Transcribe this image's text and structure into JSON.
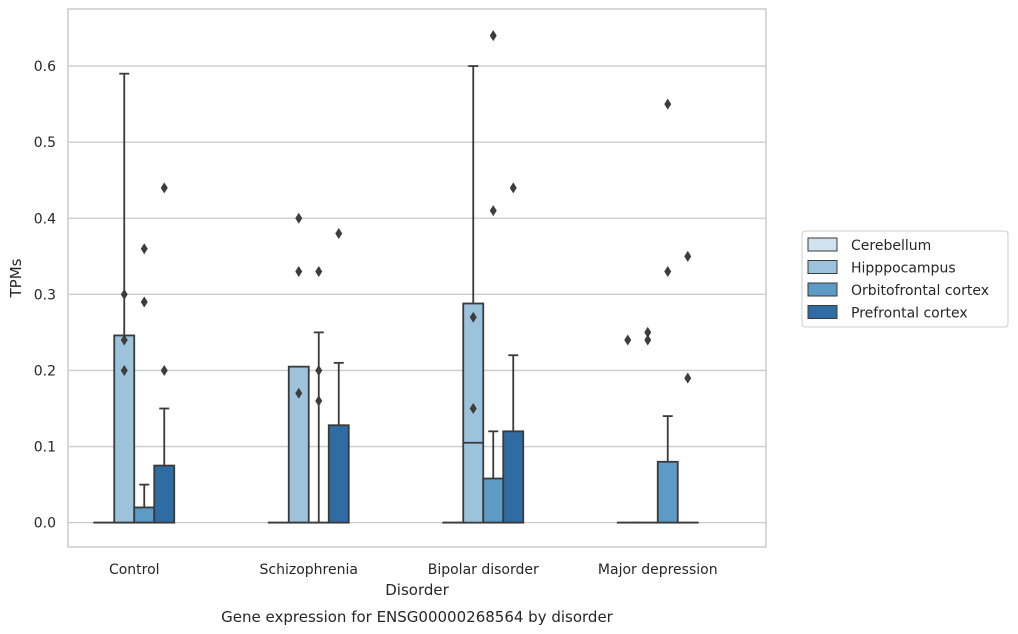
{
  "chart_data": {
    "type": "box",
    "title": "Gene expression for ENSG00000268564 by disorder",
    "xlabel": "Disorder",
    "ylabel": "TPMs",
    "ylim": [
      -0.032,
      0.675
    ],
    "yticks": [
      0.0,
      0.1,
      0.2,
      0.3,
      0.4,
      0.5,
      0.6
    ],
    "ytick_labels": [
      "0.0",
      "0.1",
      "0.2",
      "0.3",
      "0.4",
      "0.5",
      "0.6"
    ],
    "grid": true,
    "legend_position": "right",
    "categories": [
      "Control",
      "Schizophrenia",
      "Bipolar disorder",
      "Major depression"
    ],
    "series": [
      {
        "name": "Cerebellum",
        "color": "#d1e1ee",
        "boxes": [
          {
            "q1": 0,
            "median": 0,
            "q3": 0,
            "whisker_low": 0,
            "whisker_high": 0,
            "outliers": []
          },
          {
            "q1": 0,
            "median": 0,
            "q3": 0,
            "whisker_low": 0,
            "whisker_high": 0,
            "outliers": []
          },
          {
            "q1": 0,
            "median": 0,
            "q3": 0,
            "whisker_low": 0,
            "whisker_high": 0,
            "outliers": []
          },
          {
            "q1": 0,
            "median": 0,
            "q3": 0,
            "whisker_low": 0,
            "whisker_high": 0,
            "outliers": [
              0.24
            ]
          }
        ]
      },
      {
        "name": "Hipppocampus",
        "color": "#9cc2dc",
        "boxes": [
          {
            "q1": 0,
            "median": 0,
            "q3": 0.246,
            "whisker_low": 0,
            "whisker_high": 0.59,
            "outliers": [
              0.2,
              0.24,
              0.3
            ]
          },
          {
            "q1": 0,
            "median": 0,
            "q3": 0.205,
            "whisker_low": 0,
            "whisker_high": 0.205,
            "outliers": [
              0.17,
              0.33,
              0.4
            ]
          },
          {
            "q1": 0,
            "median": 0.105,
            "q3": 0.288,
            "whisker_low": 0,
            "whisker_high": 0.6,
            "outliers": [
              0.15,
              0.27
            ]
          },
          {
            "q1": 0,
            "median": 0,
            "q3": 0,
            "whisker_low": 0,
            "whisker_high": 0,
            "outliers": [
              0.24,
              0.25
            ]
          }
        ]
      },
      {
        "name": "Orbitofrontal cortex",
        "color": "#5c9bc6",
        "boxes": [
          {
            "q1": 0,
            "median": 0,
            "q3": 0.02,
            "whisker_low": 0,
            "whisker_high": 0.05,
            "outliers": [
              0.29,
              0.36
            ]
          },
          {
            "q1": 0,
            "median": 0,
            "q3": 0,
            "whisker_low": 0,
            "whisker_high": 0.25,
            "outliers": [
              0.16,
              0.2,
              0.33
            ]
          },
          {
            "q1": 0,
            "median": 0,
            "q3": 0.058,
            "whisker_low": 0,
            "whisker_high": 0.12,
            "outliers": [
              0.41,
              0.64
            ]
          },
          {
            "q1": 0,
            "median": 0,
            "q3": 0.08,
            "whisker_low": 0,
            "whisker_high": 0.14,
            "outliers": [
              0.33,
              0.55
            ]
          }
        ]
      },
      {
        "name": "Prefrontal cortex",
        "color": "#2f6ca3",
        "boxes": [
          {
            "q1": 0,
            "median": 0,
            "q3": 0.075,
            "whisker_low": 0,
            "whisker_high": 0.15,
            "outliers": [
              0.2,
              0.44
            ]
          },
          {
            "q1": 0,
            "median": 0,
            "q3": 0.128,
            "whisker_low": 0,
            "whisker_high": 0.21,
            "outliers": [
              0.38
            ]
          },
          {
            "q1": 0,
            "median": 0,
            "q3": 0.12,
            "whisker_low": 0,
            "whisker_high": 0.22,
            "outliers": [
              0.44
            ]
          },
          {
            "q1": 0,
            "median": 0,
            "q3": 0,
            "whisker_low": 0,
            "whisker_high": 0,
            "outliers": [
              0.19,
              0.35
            ]
          }
        ]
      }
    ]
  }
}
